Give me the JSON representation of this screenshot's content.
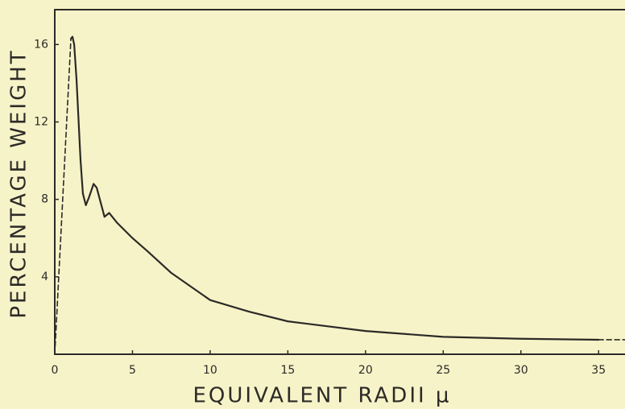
{
  "chart_data": {
    "type": "line",
    "xlabel": "EQUIVALENT RADII μ",
    "ylabel": "PERCENTAGE WEIGHT",
    "xlim": [
      0,
      36.7
    ],
    "ylim": [
      0,
      17.8
    ],
    "xticks": [
      0,
      5,
      10,
      15,
      20,
      25,
      30,
      35
    ],
    "yticks": [
      4,
      8,
      12,
      16
    ],
    "color": "#2b2a26",
    "series": [
      {
        "style": "dashed",
        "x": [
          0,
          1.04
        ],
        "values": [
          0,
          16.3
        ]
      },
      {
        "style": "solid",
        "x": [
          1.04,
          1.14,
          1.25,
          1.4,
          1.66,
          1.81,
          2.0,
          2.2,
          2.5,
          2.7,
          3.2,
          3.5,
          4,
          5,
          6,
          7.5,
          10,
          12.5,
          15,
          20,
          25,
          30,
          35
        ],
        "values": [
          16.3,
          16.4,
          16.0,
          14.2,
          10.0,
          8.3,
          7.7,
          8.1,
          8.8,
          8.6,
          7.1,
          7.3,
          6.8,
          6.0,
          5.3,
          4.2,
          2.8,
          2.2,
          1.7,
          1.2,
          0.9,
          0.8,
          0.75
        ]
      },
      {
        "style": "dashed",
        "x": [
          35,
          36.7
        ],
        "values": [
          0.75,
          0.75
        ]
      }
    ]
  }
}
